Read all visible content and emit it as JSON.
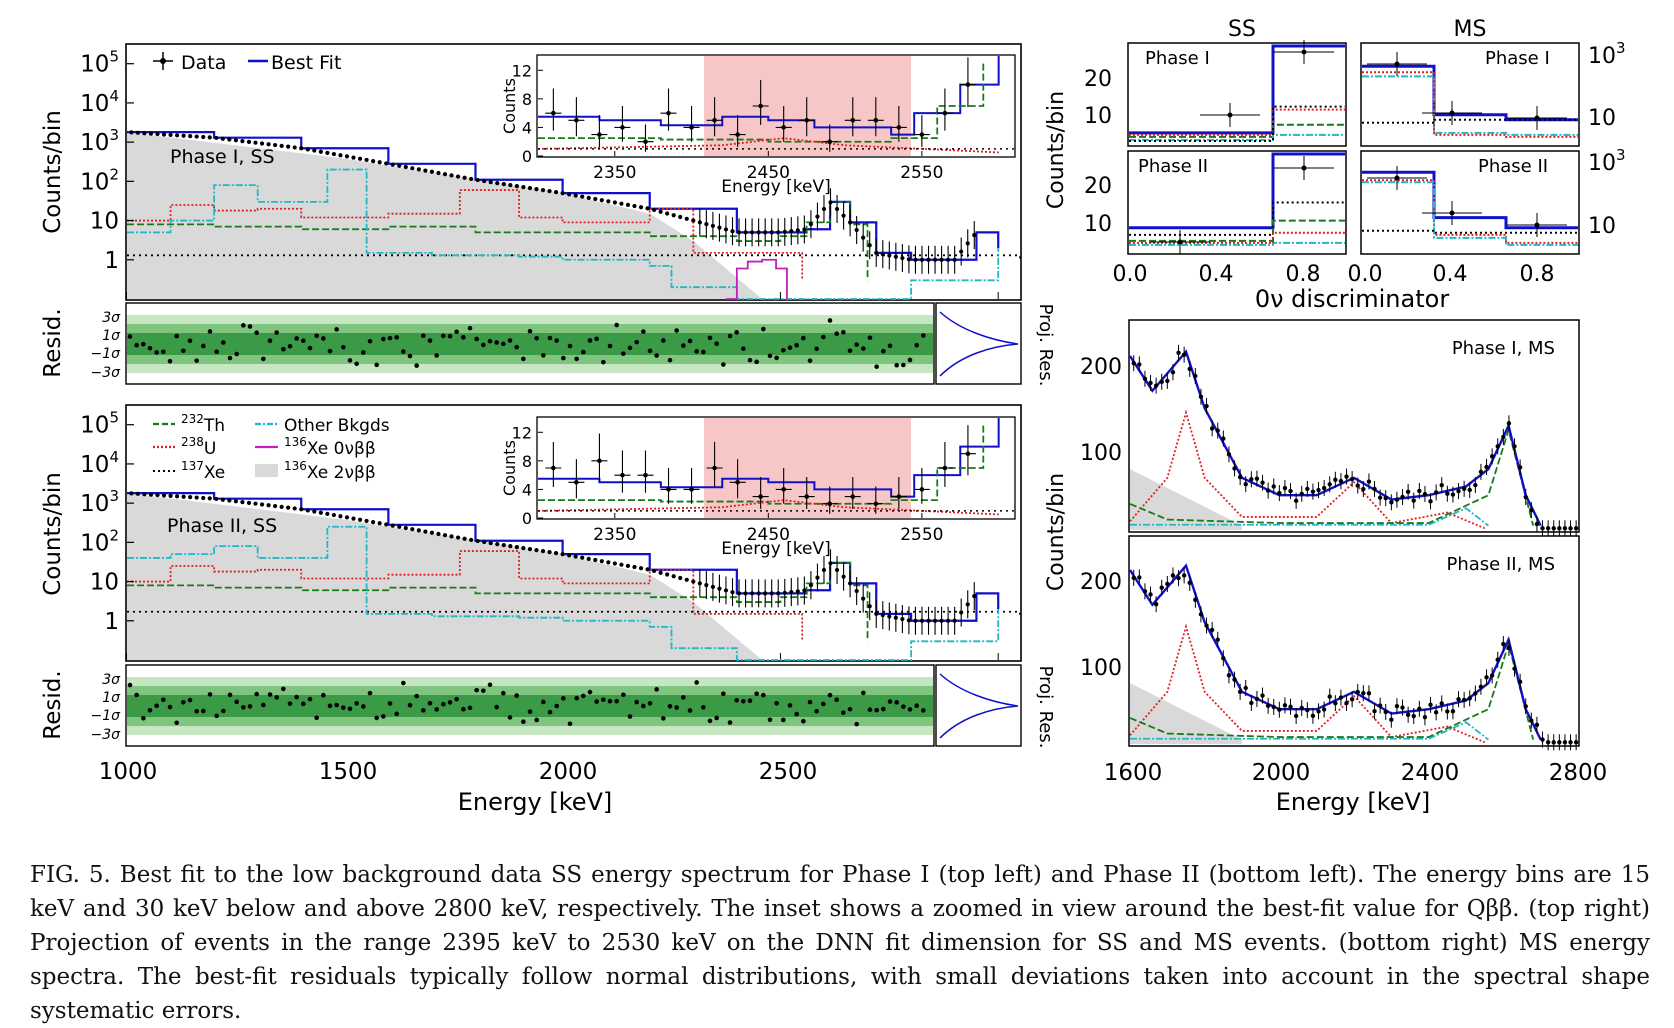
{
  "caption": "FIG. 5. Best fit to the low background data SS energy spectrum for Phase I (top left) and Phase II (bottom left). The energy bins are 15 keV and 30 keV below and above 2800 keV, respectively. The inset shows a zoomed in view around the best-fit value for Qββ. (top right) Projection of events in the range 2395 keV to 2530 keV on the DNN fit dimension for SS and MS events. (bottom right) MS energy spectra. The best-fit residuals typically follow normal distributions, with small deviations taken into account in the spectral shape systematic errors.",
  "labels": {
    "counts_per_bin": "Counts/bin",
    "resid": "Resid.",
    "proj_res": "Proj. Res.",
    "energy_kev": "Energy [keV]",
    "counts": "Counts",
    "discriminator": "0ν discriminator",
    "ss": "SS",
    "ms": "MS",
    "phase_i_ss": "Phase I, SS",
    "phase_ii_ss": "Phase II, SS",
    "phase_i_ms": "Phase I, MS",
    "phase_ii_ms": "Phase II, MS",
    "phase_i": "Phase I",
    "phase_ii": "Phase II"
  },
  "legend_top": [
    "Data",
    "Best Fit"
  ],
  "legend_bottom": [
    "232Th",
    "238U",
    "137Xe",
    "Other Bkgds",
    "136Xe 0νββ",
    "136Xe 2νββ"
  ],
  "colors": {
    "data": "#000000",
    "best_fit": "#1010cc",
    "th232": "#1a7a1a",
    "u238": "#e02020",
    "xe137": "#000000",
    "other": "#20b8c8",
    "xe136_0v": "#c020c0",
    "xe136_2v": "#d9d9d9",
    "inset_roi": "#f7c6c6",
    "resid_1s": "#3a9a45",
    "resid_2s": "#7fc47f",
    "resid_3s": "#c7e6c2"
  },
  "chart_data": [
    {
      "type": "line",
      "panel": "Phase I, SS",
      "xlabel": "Energy [keV]",
      "ylabel": "Counts/bin",
      "xlim": [
        1000,
        3050
      ],
      "ylim": [
        0.1,
        300000
      ],
      "yscale": "log",
      "yticks": [
        "1",
        "10",
        "10^2",
        "10^3",
        "10^4",
        "10^5"
      ],
      "series": [
        {
          "name": "Best Fit",
          "x": [
            1000,
            1200,
            1400,
            1600,
            1800,
            2000,
            2200,
            2400,
            2500,
            2560,
            2614,
            2660,
            2720,
            2800,
            2900,
            2950,
            3000
          ],
          "y": [
            1800,
            1300,
            700,
            280,
            110,
            50,
            20,
            5,
            5,
            6,
            30,
            9,
            1.5,
            1,
            1,
            5,
            2
          ]
        },
        {
          "name": "232Th",
          "x": [
            1000,
            1200,
            1400,
            1600,
            1800,
            2000,
            2200,
            2400,
            2500,
            2560,
            2614,
            2660,
            2700
          ],
          "y": [
            8,
            7,
            6,
            7,
            5,
            5,
            4,
            3,
            4,
            9,
            30,
            8,
            0.3
          ]
        },
        {
          "name": "238U",
          "x": [
            1000,
            1100,
            1200,
            1300,
            1400,
            1600,
            1764,
            1900,
            2000,
            2200,
            2300,
            2447,
            2550
          ],
          "y": [
            10,
            25,
            18,
            20,
            12,
            15,
            60,
            12,
            9,
            20,
            1.5,
            1.5,
            0.3
          ]
        },
        {
          "name": "137Xe",
          "x": [
            1000,
            3050
          ],
          "y": [
            1.3,
            1.0
          ]
        },
        {
          "name": "Other Bkgds",
          "x": [
            1000,
            1100,
            1200,
            1300,
            1460,
            1550,
            1700,
            1900,
            2000,
            2200,
            2250,
            2400,
            2800,
            3000
          ],
          "y": [
            5,
            10,
            80,
            30,
            200,
            1.5,
            1.3,
            1.2,
            1.0,
            0.7,
            0.2,
            0.1,
            0.3,
            2
          ]
        },
        {
          "name": "136Xe 0νββ",
          "x": [
            2375,
            2400,
            2425,
            2458,
            2490,
            2515
          ],
          "y": [
            0.1,
            0.6,
            0.9,
            1.0,
            0.6,
            0.1
          ]
        },
        {
          "name": "136Xe 2νββ",
          "x": [
            1000,
            1500,
            2000,
            2200,
            2300,
            2458
          ],
          "y": [
            1800,
            380,
            50,
            15,
            3,
            0.1
          ]
        }
      ],
      "inset": {
        "xlabel": "Energy [keV]",
        "ylabel": "Counts",
        "xlim": [
          2300,
          2610
        ],
        "ylim": [
          0,
          14
        ],
        "yticks": [
          0,
          4,
          8,
          12
        ],
        "xticks": [
          2350,
          2450,
          2550
        ],
        "roi": [
          2395,
          2530
        ],
        "data": {
          "x": [
            2310,
            2325,
            2340,
            2355,
            2370,
            2385,
            2400,
            2415,
            2430,
            2445,
            2460,
            2475,
            2490,
            2505,
            2520,
            2535,
            2550,
            2565,
            2580
          ],
          "y": [
            6,
            5,
            3,
            4,
            2,
            6,
            4,
            5,
            3,
            7,
            4,
            5,
            2,
            5,
            5,
            4,
            3,
            6,
            10
          ]
        }
      }
    },
    {
      "type": "line",
      "panel": "Phase II, SS",
      "xlabel": "Energy [keV]",
      "ylabel": "Counts/bin",
      "xlim": [
        1000,
        3050
      ],
      "ylim": [
        0.1,
        300000
      ],
      "yscale": "log",
      "xticks": [
        1000,
        1500,
        2000,
        2500
      ],
      "series": [
        {
          "name": "Best Fit",
          "x": [
            1000,
            1200,
            1400,
            1600,
            1800,
            2000,
            2200,
            2400,
            2500,
            2560,
            2614,
            2660,
            2720,
            2800,
            2900,
            2950,
            3000
          ],
          "y": [
            1800,
            1300,
            700,
            280,
            110,
            50,
            20,
            5,
            5,
            6,
            30,
            9,
            1.5,
            1,
            1,
            5,
            2
          ]
        },
        {
          "name": "232Th",
          "x": [
            1000,
            1200,
            1400,
            1600,
            1800,
            2000,
            2200,
            2400,
            2500,
            2560,
            2614,
            2660,
            2700
          ],
          "y": [
            8,
            7,
            6,
            7,
            5,
            5,
            4,
            3,
            4,
            9,
            30,
            8,
            0.3
          ]
        },
        {
          "name": "238U",
          "x": [
            1000,
            1100,
            1200,
            1300,
            1400,
            1600,
            1764,
            1900,
            2000,
            2200,
            2300,
            2447,
            2550
          ],
          "y": [
            10,
            25,
            18,
            20,
            12,
            15,
            60,
            12,
            9,
            20,
            1.5,
            1.5,
            0.3
          ]
        },
        {
          "name": "137Xe",
          "x": [
            1000,
            3050
          ],
          "y": [
            1.7,
            1.3
          ]
        },
        {
          "name": "Other Bkgds",
          "x": [
            1000,
            1100,
            1200,
            1300,
            1460,
            1550,
            1700,
            1900,
            2000,
            2200,
            2250,
            2400,
            2800,
            3000
          ],
          "y": [
            40,
            50,
            80,
            40,
            250,
            1.5,
            1.3,
            1.2,
            1.0,
            0.7,
            0.2,
            0.1,
            0.3,
            2
          ]
        },
        {
          "name": "136Xe 2νββ",
          "x": [
            1000,
            1500,
            2000,
            2200,
            2300,
            2458
          ],
          "y": [
            1800,
            380,
            50,
            15,
            3,
            0.1
          ]
        }
      ],
      "inset": {
        "xlabel": "Energy [keV]",
        "ylabel": "Counts",
        "xlim": [
          2300,
          2610
        ],
        "ylim": [
          0,
          14
        ],
        "yticks": [
          0,
          4,
          8,
          12
        ],
        "xticks": [
          2350,
          2450,
          2550
        ],
        "roi": [
          2395,
          2530
        ],
        "data": {
          "x": [
            2310,
            2325,
            2340,
            2355,
            2370,
            2385,
            2400,
            2415,
            2430,
            2445,
            2460,
            2475,
            2490,
            2505,
            2520,
            2535,
            2550,
            2565,
            2580
          ],
          "y": [
            7,
            5,
            8,
            6,
            6,
            4,
            4,
            7,
            5,
            3,
            4,
            3,
            2,
            3,
            2,
            3,
            4,
            7,
            9
          ]
        }
      }
    },
    {
      "type": "bar",
      "panel": "SS Phase I",
      "xlabel": "0ν discriminator",
      "ylabel": "Counts/bin",
      "xlim": [
        0,
        1
      ],
      "ylim": [
        0,
        30
      ],
      "xticks": [
        "0.0",
        "0.4",
        "0.8"
      ],
      "series": [
        {
          "name": "Best Fit",
          "x": [
            0,
            0.6
          ],
          "width": 0.6,
          "values": [
            3,
            27
          ]
        },
        {
          "name": "Data",
          "x": [
            0.3,
            0.8
          ],
          "values": [
            10,
            28
          ]
        }
      ]
    },
    {
      "type": "bar",
      "panel": "MS Phase I",
      "xlabel": "0ν discriminator",
      "ylabel": "Counts/bin",
      "yscale": "log",
      "series": [
        {
          "name": "Best Fit",
          "x": [
            0,
            0.3,
            0.6
          ],
          "values": [
            300,
            10,
            6
          ]
        },
        {
          "name": "Data",
          "x": [
            0.15,
            0.45,
            0.8
          ],
          "values": [
            300,
            9,
            6
          ]
        }
      ]
    },
    {
      "type": "line",
      "panel": "Phase I, MS",
      "xlabel": "Energy [keV]",
      "ylabel": "Counts/bin",
      "xlim": [
        1600,
        2800
      ],
      "ylim": [
        0,
        240
      ],
      "yticks": [
        100,
        200
      ],
      "xticks": [
        1600,
        2000,
        2400,
        2800
      ],
      "series": [
        {
          "name": "Best Fit",
          "x": [
            1600,
            1660,
            1700,
            1750,
            1800,
            1900,
            2000,
            2100,
            2200,
            2300,
            2400,
            2500,
            2560,
            2614,
            2660,
            2700
          ],
          "y": [
            200,
            160,
            180,
            205,
            140,
            60,
            40,
            40,
            60,
            35,
            40,
            50,
            70,
            120,
            40,
            5
          ]
        }
      ]
    }
  ]
}
